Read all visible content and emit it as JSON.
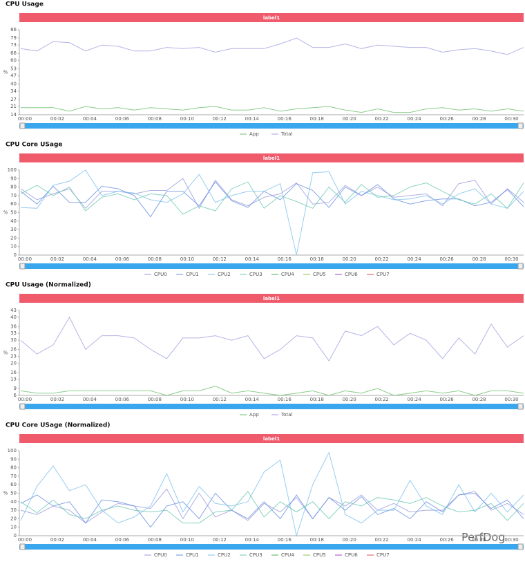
{
  "watermark": "PerfDog",
  "chart_data": [
    {
      "type": "line",
      "title": "CPU Usage",
      "banner": "label1",
      "ylabel": "%",
      "categories": [
        "00:00",
        null,
        "00:02",
        null,
        "00:04",
        null,
        "00:06",
        null,
        "00:08",
        null,
        "00:10",
        null,
        "00:12",
        null,
        "00:14",
        null,
        "00:16",
        null,
        "00:18",
        null,
        "00:20",
        null,
        "00:22",
        null,
        "00:24",
        null,
        "00:26",
        null,
        "00:28",
        null,
        "00:30",
        null
      ],
      "ylim": [
        14,
        86
      ],
      "yticks": [
        14,
        21,
        27,
        34,
        40,
        47,
        53,
        60,
        66,
        73,
        79,
        86
      ],
      "series": [
        {
          "name": "App",
          "color": "#6cbf6c",
          "values": [
            20,
            20,
            20,
            17,
            21,
            19,
            20,
            18,
            20,
            19,
            18,
            20,
            21,
            18,
            18,
            20,
            17,
            19,
            20,
            21,
            18,
            16,
            19,
            16,
            16,
            19,
            20,
            18,
            19,
            17,
            19,
            17
          ]
        },
        {
          "name": "Total",
          "color": "#a0a0e0",
          "values": [
            70,
            68,
            76,
            75,
            68,
            73,
            72,
            68,
            68,
            71,
            70,
            71,
            67,
            70,
            70,
            70,
            74,
            79,
            71,
            71,
            74,
            70,
            73,
            72,
            71,
            71,
            67,
            69,
            70,
            68,
            65,
            71
          ]
        }
      ]
    },
    {
      "type": "line",
      "title": "CPU Core USage",
      "banner": "label1",
      "ylabel": "%",
      "categories": [
        "00:00",
        null,
        "00:02",
        null,
        "00:04",
        null,
        "00:06",
        null,
        "00:08",
        null,
        "00:10",
        null,
        "00:12",
        null,
        "00:14",
        null,
        "00:16",
        null,
        "00:18",
        null,
        "00:20",
        null,
        "00:22",
        null,
        "00:24",
        null,
        "00:26",
        null,
        "00:28",
        null,
        "00:30",
        null
      ],
      "ylim": [
        0,
        100
      ],
      "yticks": [
        0,
        10,
        20,
        30,
        40,
        50,
        60,
        70,
        80,
        90,
        100
      ],
      "series": [
        {
          "name": "CPU0",
          "color": "#9a9ae0",
          "values": [
            78,
            65,
            72,
            78,
            55,
            75,
            75,
            72,
            76,
            76,
            90,
            55,
            88,
            65,
            58,
            68,
            72,
            85,
            60,
            62,
            82,
            70,
            80,
            68,
            70,
            72,
            58,
            84,
            88,
            60,
            78,
            62
          ]
        },
        {
          "name": "CPU1",
          "color": "#6a8fe0",
          "values": [
            75,
            60,
            81,
            62,
            62,
            81,
            78,
            70,
            45,
            75,
            75,
            58,
            86,
            64,
            56,
            75,
            65,
            84,
            76,
            56,
            80,
            70,
            83,
            66,
            60,
            64,
            66,
            66,
            58,
            62,
            77,
            57
          ]
        },
        {
          "name": "CPU2",
          "color": "#7cc0ec",
          "values": [
            56,
            55,
            82,
            87,
            100,
            70,
            75,
            73,
            65,
            62,
            72,
            95,
            62,
            70,
            75,
            75,
            84,
            0,
            97,
            98,
            60,
            75,
            70,
            65,
            66,
            70,
            60,
            72,
            78,
            60,
            55,
            75
          ]
        },
        {
          "name": "CPU3",
          "color": "#6cc8b0",
          "values": [
            72,
            82,
            70,
            80,
            52,
            68,
            72,
            65,
            72,
            70,
            48,
            58,
            52,
            78,
            86,
            55,
            70,
            63,
            55,
            80,
            62,
            83,
            68,
            70,
            80,
            85,
            75,
            65,
            60,
            72,
            55,
            85
          ]
        },
        {
          "name": "CPU4",
          "color": "#4caf50",
          "values": [
            null,
            null,
            null,
            null,
            null,
            null,
            null,
            null,
            null,
            null,
            null,
            null,
            null,
            null,
            null,
            null,
            null,
            null,
            null,
            null,
            null,
            null,
            null,
            null,
            null,
            null,
            null,
            null,
            null,
            null,
            null,
            null
          ]
        },
        {
          "name": "CPU5",
          "color": "#8bc34a",
          "values": [
            null,
            null,
            null,
            null,
            null,
            null,
            null,
            null,
            null,
            null,
            null,
            null,
            null,
            null,
            null,
            null,
            null,
            null,
            null,
            null,
            null,
            null,
            null,
            null,
            null,
            null,
            null,
            null,
            null,
            null,
            null,
            null
          ]
        },
        {
          "name": "CPU6",
          "color": "#a040c8",
          "values": [
            null,
            null,
            null,
            null,
            null,
            null,
            null,
            null,
            null,
            null,
            null,
            null,
            null,
            null,
            null,
            null,
            null,
            null,
            null,
            null,
            null,
            null,
            null,
            null,
            null,
            null,
            null,
            null,
            null,
            null,
            null,
            null
          ]
        },
        {
          "name": "CPU7",
          "color": "#e04848",
          "values": [
            null,
            null,
            null,
            null,
            null,
            null,
            null,
            null,
            null,
            null,
            null,
            null,
            null,
            null,
            null,
            null,
            null,
            null,
            null,
            null,
            null,
            null,
            null,
            null,
            null,
            null,
            null,
            null,
            null,
            null,
            null,
            null
          ]
        }
      ]
    },
    {
      "type": "line",
      "title": "CPU Usage (Normalized)",
      "banner": "label1",
      "ylabel": "%",
      "categories": [
        "00:00",
        null,
        "00:02",
        null,
        "00:04",
        null,
        "00:06",
        null,
        "00:08",
        null,
        "00:10",
        null,
        "00:12",
        null,
        "00:14",
        null,
        "00:16",
        null,
        "00:18",
        null,
        "00:20",
        null,
        "00:22",
        null,
        "00:24",
        null,
        "00:26",
        null,
        "00:28",
        null,
        "00:30",
        null
      ],
      "ylim": [
        6,
        43
      ],
      "yticks": [
        6,
        9,
        13,
        16,
        20,
        23,
        26,
        30,
        33,
        36,
        40,
        43
      ],
      "series": [
        {
          "name": "App",
          "color": "#6cbf6c",
          "values": [
            8,
            7,
            7,
            8,
            8,
            8,
            8,
            8,
            8,
            6,
            8,
            8,
            10,
            7,
            8,
            7,
            6,
            7,
            8,
            6,
            8,
            7,
            9,
            6,
            7,
            8,
            7,
            8,
            6,
            8,
            8,
            7
          ]
        },
        {
          "name": "Total",
          "color": "#a0a0e0",
          "values": [
            30,
            24,
            28,
            40,
            26,
            32,
            32,
            31,
            26,
            22,
            31,
            31,
            32,
            30,
            32,
            22,
            26,
            32,
            31,
            21,
            34,
            32,
            36,
            28,
            33,
            30,
            22,
            31,
            24,
            37,
            27,
            32
          ]
        }
      ]
    },
    {
      "type": "line",
      "title": "CPU Core USage (Normalized)",
      "banner": "label1",
      "ylabel": "%",
      "categories": [
        "00:00",
        null,
        "00:02",
        null,
        "00:04",
        null,
        "00:06",
        null,
        "00:08",
        null,
        "00:10",
        null,
        "00:12",
        null,
        "00:14",
        null,
        "00:16",
        null,
        "00:18",
        null,
        "00:20",
        null,
        "00:22",
        null,
        "00:24",
        null,
        "00:26",
        null,
        "00:28",
        null,
        "00:30",
        null
      ],
      "ylim": [
        0,
        100
      ],
      "yticks": [
        0,
        10,
        20,
        30,
        40,
        50,
        60,
        70,
        80,
        90,
        100
      ],
      "series": [
        {
          "name": "CPU0",
          "color": "#9a9ae0",
          "values": [
            30,
            25,
            35,
            30,
            15,
            28,
            38,
            35,
            32,
            55,
            20,
            50,
            22,
            30,
            18,
            38,
            28,
            45,
            20,
            45,
            35,
            48,
            30,
            38,
            28,
            30,
            30,
            48,
            52,
            30,
            38,
            25
          ]
        },
        {
          "name": "CPU1",
          "color": "#6a8fe0",
          "values": [
            38,
            48,
            35,
            40,
            15,
            42,
            40,
            35,
            10,
            35,
            40,
            20,
            50,
            30,
            20,
            40,
            20,
            48,
            20,
            45,
            30,
            46,
            25,
            32,
            20,
            40,
            28,
            48,
            50,
            32,
            42,
            20
          ]
        },
        {
          "name": "CPU2",
          "color": "#7cc0ec",
          "values": [
            18,
            58,
            82,
            53,
            60,
            30,
            15,
            22,
            35,
            73,
            28,
            58,
            38,
            35,
            40,
            75,
            89,
            0,
            60,
            98,
            25,
            15,
            30,
            30,
            65,
            35,
            25,
            60,
            28,
            50,
            28,
            48
          ]
        },
        {
          "name": "CPU3",
          "color": "#6cc8b0",
          "values": [
            40,
            27,
            42,
            25,
            20,
            30,
            35,
            30,
            28,
            30,
            15,
            15,
            28,
            30,
            52,
            22,
            40,
            28,
            40,
            20,
            40,
            35,
            45,
            42,
            38,
            45,
            35,
            28,
            30,
            38,
            18,
            38
          ]
        },
        {
          "name": "CPU4",
          "color": "#4caf50",
          "values": [
            null,
            null,
            null,
            null,
            null,
            null,
            null,
            null,
            null,
            null,
            null,
            null,
            null,
            null,
            null,
            null,
            null,
            null,
            null,
            null,
            null,
            null,
            null,
            null,
            null,
            null,
            null,
            null,
            null,
            null,
            null,
            null
          ]
        },
        {
          "name": "CPU5",
          "color": "#8bc34a",
          "values": [
            null,
            null,
            null,
            null,
            null,
            null,
            null,
            null,
            null,
            null,
            null,
            null,
            null,
            null,
            null,
            null,
            null,
            null,
            null,
            null,
            null,
            null,
            null,
            null,
            null,
            null,
            null,
            null,
            null,
            null,
            null,
            null
          ]
        },
        {
          "name": "CPU6",
          "color": "#a040c8",
          "values": [
            null,
            null,
            null,
            null,
            null,
            null,
            null,
            null,
            null,
            null,
            null,
            null,
            null,
            null,
            null,
            null,
            null,
            null,
            null,
            null,
            null,
            null,
            null,
            null,
            null,
            null,
            null,
            null,
            null,
            null,
            null,
            null
          ]
        },
        {
          "name": "CPU7",
          "color": "#e04848",
          "values": [
            null,
            null,
            null,
            null,
            null,
            null,
            null,
            null,
            null,
            null,
            null,
            null,
            null,
            null,
            null,
            null,
            null,
            null,
            null,
            null,
            null,
            null,
            null,
            null,
            null,
            null,
            null,
            null,
            null,
            null,
            null,
            null
          ]
        }
      ]
    }
  ]
}
